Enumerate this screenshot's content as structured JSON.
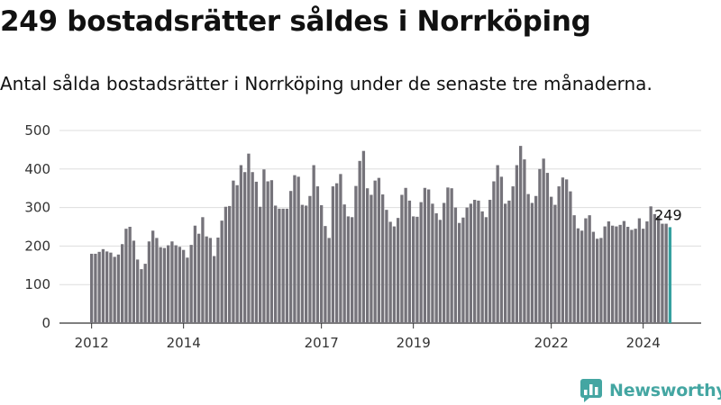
{
  "title": "249 bostadsrätter såldes i Norrköping",
  "subtitle": "Antal sålda bostadsrätter i Norrköping under de senaste tre månaderna.",
  "brand": "Newsworthy",
  "colors": {
    "bar": "#75737a",
    "highlight": "#36a1a0",
    "axis": "#333333",
    "grid": "#dddddd",
    "brand": "#44a6a2"
  },
  "chart_data": {
    "type": "bar",
    "title": "249 bostadsrätter såldes i Norrköping",
    "subtitle": "Antal sålda bostadsrätter i Norrköping under de senaste tre månaderna.",
    "xlabel": "",
    "ylabel": "",
    "ylim": [
      0,
      500
    ],
    "yticks": [
      0,
      100,
      200,
      300,
      400,
      500
    ],
    "xticks": [
      "2012",
      "2014",
      "2017",
      "2019",
      "2022",
      "2024"
    ],
    "grid": "horizontal",
    "legend": "none",
    "annotation": {
      "label": "249",
      "target": "last bar"
    },
    "highlight": "last bar",
    "values": [
      180,
      180,
      185,
      192,
      186,
      183,
      172,
      178,
      205,
      245,
      250,
      214,
      165,
      140,
      154,
      212,
      240,
      221,
      197,
      195,
      202,
      212,
      202,
      198,
      190,
      170,
      203,
      253,
      232,
      275,
      225,
      221,
      174,
      222,
      266,
      302,
      304,
      370,
      358,
      410,
      392,
      440,
      392,
      367,
      302,
      399,
      368,
      371,
      305,
      297,
      297,
      297,
      343,
      384,
      380,
      307,
      305,
      330,
      410,
      355,
      306,
      252,
      221,
      355,
      363,
      387,
      308,
      277,
      275,
      356,
      421,
      447,
      350,
      333,
      370,
      377,
      334,
      294,
      263,
      251,
      273,
      333,
      351,
      318,
      277,
      276,
      314,
      351,
      347,
      310,
      285,
      268,
      312,
      352,
      350,
      300,
      260,
      274,
      300,
      310,
      320,
      318,
      290,
      275,
      320,
      368,
      410,
      380,
      310,
      318,
      355,
      410,
      460,
      425,
      335,
      312,
      330,
      400,
      427,
      390,
      328,
      307,
      355,
      378,
      373,
      342,
      280,
      246,
      240,
      272,
      280,
      237,
      219,
      221,
      251,
      264,
      253,
      251,
      255,
      265,
      250,
      242,
      245,
      272,
      245,
      264,
      303,
      283,
      278,
      258,
      258,
      249
    ]
  }
}
